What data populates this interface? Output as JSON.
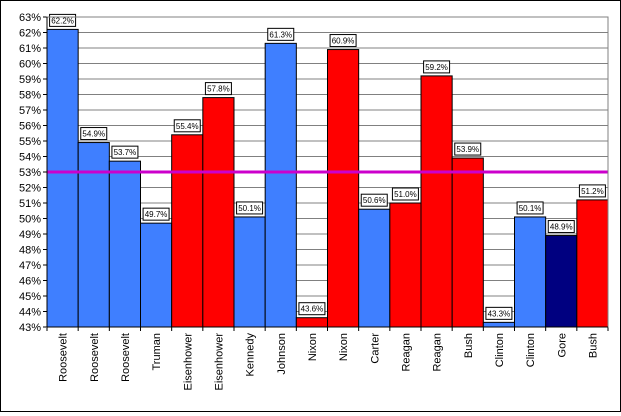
{
  "chart_data": {
    "type": "bar",
    "title": "",
    "xlabel": "",
    "ylabel": "",
    "ylim": [
      43,
      63
    ],
    "y_tick_step": 1,
    "y_tick_format": "percent",
    "grid": true,
    "legend": "none",
    "reference_line": {
      "value": 53.0,
      "color": "#cc00cc"
    },
    "categories": [
      "Roosevelt",
      "Roosevelt",
      "Roosevelt",
      "Truman",
      "Eisenhower",
      "Eisenhower",
      "Kennedy",
      "Johnson",
      "Nixon",
      "Nixon",
      "Carter",
      "Reagan",
      "Reagan",
      "Bush",
      "Clinton",
      "Clinton",
      "Gore",
      "Bush"
    ],
    "values": [
      62.2,
      54.9,
      53.7,
      49.7,
      55.4,
      57.8,
      50.1,
      61.3,
      43.6,
      60.9,
      50.6,
      51.0,
      59.2,
      53.9,
      43.3,
      50.1,
      48.9,
      51.2
    ],
    "value_labels": [
      "62.2%",
      "54.9%",
      "53.7%",
      "49.7%",
      "55.4%",
      "57.8%",
      "50.1%",
      "61.3%",
      "43.6%",
      "60.9%",
      "50.6%",
      "51.0%",
      "59.2%",
      "53.9%",
      "43.3%",
      "50.1%",
      "48.9%",
      "51.2%"
    ],
    "bar_colors": [
      "#3f7fff",
      "#3f7fff",
      "#3f7fff",
      "#3f7fff",
      "#ff0000",
      "#ff0000",
      "#3f7fff",
      "#3f7fff",
      "#ff0000",
      "#ff0000",
      "#3f7fff",
      "#ff0000",
      "#ff0000",
      "#ff0000",
      "#3f7fff",
      "#3f7fff",
      "#000080",
      "#ff0000"
    ],
    "colors": {
      "democrat": "#3f7fff",
      "republican": "#ff0000",
      "gore": "#000080",
      "plot_area": "#ffffff",
      "grid": "#808080"
    }
  }
}
